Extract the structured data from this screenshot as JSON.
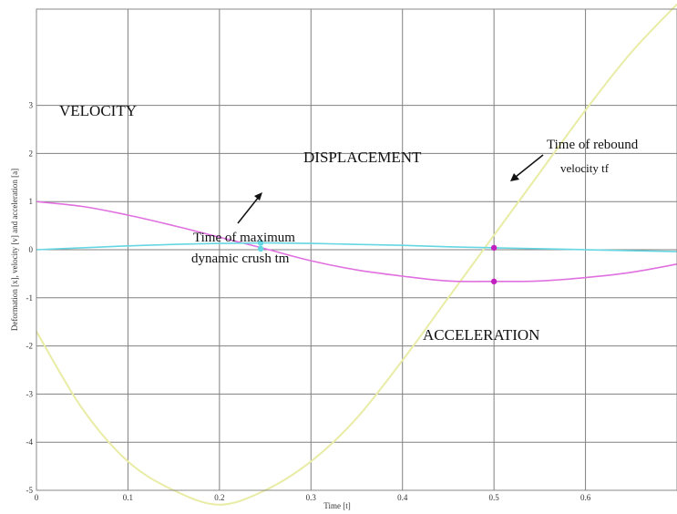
{
  "chart_data": {
    "type": "line",
    "xlabel": "Time [t]",
    "ylabel": "Deformation [x], velocity [v] and acceleration [a]",
    "xlim": [
      0,
      0.7
    ],
    "ylim": [
      -5,
      5
    ],
    "xticks": [
      0,
      0.1,
      0.2,
      0.3,
      0.4,
      0.5,
      0.6,
      0.7
    ],
    "xtick_labels": [
      "0",
      "0.1",
      "0.2",
      "0.3",
      "0.4",
      "0.5",
      "0.6",
      ""
    ],
    "yticks": [
      -5,
      -4,
      -3,
      -2,
      -1,
      0,
      1,
      2,
      3
    ],
    "ytick_labels": [
      "-5",
      "-4",
      "-3",
      "-2",
      "-1",
      "0",
      "1",
      "2",
      "3"
    ],
    "grid": true,
    "colors": {
      "velocity": "#e070e0",
      "displacement": "#66d6e2",
      "acceleration": "#e8eca4",
      "marker": "#c020c0",
      "grid": "#808080"
    },
    "series": [
      {
        "key": "velocity",
        "x": [
          0,
          0.05,
          0.1,
          0.15,
          0.2,
          0.25,
          0.3,
          0.35,
          0.4,
          0.45,
          0.5,
          0.55,
          0.6,
          0.65,
          0.7
        ],
        "y": [
          1.0,
          0.9,
          0.72,
          0.5,
          0.26,
          0.02,
          -0.23,
          -0.42,
          -0.55,
          -0.65,
          -0.66,
          -0.65,
          -0.58,
          -0.47,
          -0.3
        ]
      },
      {
        "key": "displacement",
        "x": [
          0,
          0.05,
          0.1,
          0.15,
          0.2,
          0.25,
          0.3,
          0.35,
          0.4,
          0.45,
          0.5,
          0.55,
          0.6,
          0.65,
          0.7
        ],
        "y": [
          0.0,
          0.04,
          0.08,
          0.11,
          0.13,
          0.14,
          0.13,
          0.11,
          0.09,
          0.06,
          0.04,
          0.02,
          0.0,
          -0.02,
          -0.04
        ]
      },
      {
        "key": "acceleration",
        "x": [
          0,
          0.05,
          0.1,
          0.15,
          0.2,
          0.25,
          0.3,
          0.35,
          0.4,
          0.45,
          0.5,
          0.55,
          0.6,
          0.65,
          0.7
        ],
        "y": [
          -1.7,
          -3.3,
          -4.4,
          -5.0,
          -5.3,
          -5.0,
          -4.4,
          -3.5,
          -2.3,
          -1.0,
          0.3,
          1.6,
          2.9,
          4.1,
          5.1
        ]
      }
    ],
    "markers": [
      {
        "x": 0.245,
        "y": 0.14,
        "color": "#66d6e2"
      },
      {
        "x": 0.245,
        "y": 0.02,
        "color": "#66d6e2"
      },
      {
        "x": 0.5,
        "y": 0.04,
        "color": "#c020c0"
      },
      {
        "x": 0.5,
        "y": -0.66,
        "color": "#c020c0"
      }
    ],
    "labels": {
      "velocity": "VELOCITY",
      "displacement": "DISPLACEMENT",
      "acceleration": "ACCELERATION",
      "tm_line1": "Time of maximum",
      "tm_line2": "dynamic crush tm",
      "tf_line1": "Time of rebound",
      "tf_line2": "velocity tf"
    }
  }
}
